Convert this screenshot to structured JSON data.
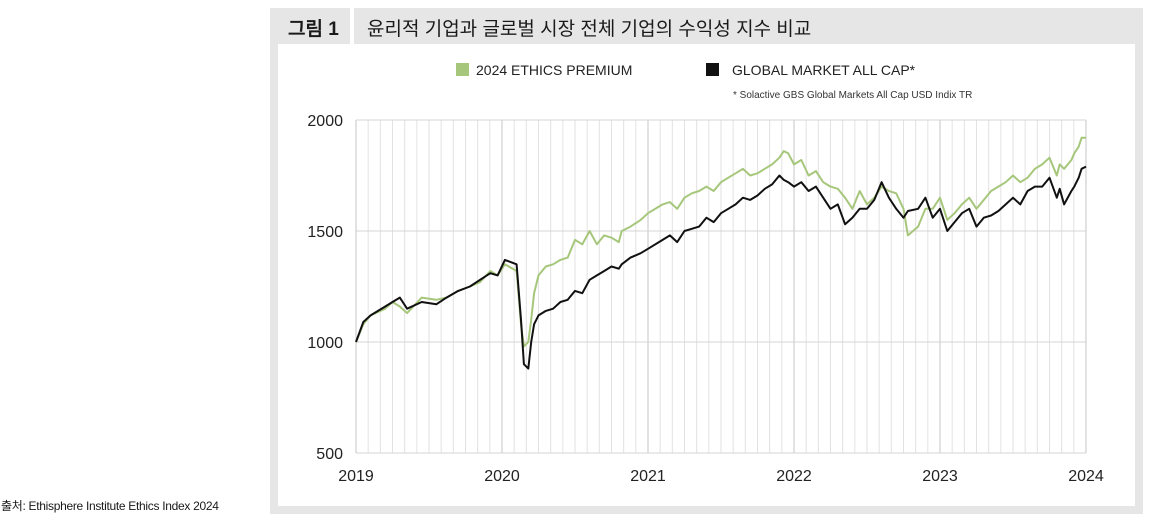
{
  "figure": {
    "label": "그림 1",
    "title": "윤리적 기업과 글로벌 시장 전체 기업의 수익성 지수 비교"
  },
  "source": "출처: Ethisphere Institute Ethics Index 2024",
  "colors": {
    "ethics": "#a6c77b",
    "market": "#111111",
    "grid": "#e2e2e2",
    "panel": "#e6e6e6"
  },
  "chart_data": {
    "type": "line",
    "title": "",
    "xlabel": "",
    "ylabel": "",
    "xlim": [
      2019,
      2024
    ],
    "ylim": [
      500,
      2000
    ],
    "x_ticks": [
      "2019",
      "2020",
      "2021",
      "2022",
      "2023",
      "2024"
    ],
    "y_ticks": [
      "500",
      "1000",
      "1500",
      "2000"
    ],
    "grid": true,
    "legend_position": "top",
    "footnote": "* Solactive GBS Global Markets All Cap USD Indix TR",
    "series": [
      {
        "name": "2024 ETHICS PREMIUM",
        "x": [
          2019.0,
          2019.05,
          2019.1,
          2019.2,
          2019.25,
          2019.3,
          2019.35,
          2019.45,
          2019.55,
          2019.62,
          2019.7,
          2019.78,
          2019.85,
          2019.92,
          2019.97,
          2020.02,
          2020.1,
          2020.13,
          2020.15,
          2020.18,
          2020.2,
          2020.22,
          2020.25,
          2020.3,
          2020.35,
          2020.4,
          2020.45,
          2020.5,
          2020.55,
          2020.6,
          2020.65,
          2020.7,
          2020.75,
          2020.8,
          2020.82,
          2020.88,
          2020.95,
          2021.0,
          2021.1,
          2021.15,
          2021.2,
          2021.25,
          2021.3,
          2021.35,
          2021.4,
          2021.45,
          2021.5,
          2021.55,
          2021.6,
          2021.65,
          2021.7,
          2021.75,
          2021.8,
          2021.85,
          2021.9,
          2021.93,
          2021.96,
          2022.0,
          2022.05,
          2022.1,
          2022.15,
          2022.2,
          2022.25,
          2022.3,
          2022.35,
          2022.4,
          2022.45,
          2022.5,
          2022.55,
          2022.6,
          2022.65,
          2022.7,
          2022.75,
          2022.78,
          2022.85,
          2022.9,
          2022.95,
          2023.0,
          2023.05,
          2023.1,
          2023.15,
          2023.2,
          2023.25,
          2023.3,
          2023.35,
          2023.4,
          2023.45,
          2023.5,
          2023.55,
          2023.6,
          2023.65,
          2023.7,
          2023.75,
          2023.8,
          2023.82,
          2023.85,
          2023.9,
          2023.92,
          2023.95,
          2023.97,
          2024.0
        ],
        "values": [
          1000,
          1080,
          1120,
          1150,
          1180,
          1160,
          1130,
          1200,
          1190,
          1200,
          1230,
          1250,
          1270,
          1320,
          1300,
          1350,
          1320,
          1080,
          980,
          1000,
          1100,
          1220,
          1300,
          1340,
          1350,
          1370,
          1380,
          1460,
          1440,
          1500,
          1440,
          1480,
          1470,
          1450,
          1500,
          1520,
          1550,
          1580,
          1620,
          1630,
          1600,
          1650,
          1670,
          1680,
          1700,
          1680,
          1720,
          1740,
          1760,
          1780,
          1750,
          1760,
          1780,
          1800,
          1830,
          1860,
          1850,
          1800,
          1820,
          1750,
          1770,
          1720,
          1700,
          1690,
          1650,
          1600,
          1680,
          1620,
          1650,
          1700,
          1680,
          1670,
          1600,
          1480,
          1520,
          1600,
          1600,
          1650,
          1550,
          1580,
          1620,
          1650,
          1600,
          1640,
          1680,
          1700,
          1720,
          1750,
          1720,
          1740,
          1780,
          1800,
          1830,
          1750,
          1800,
          1780,
          1820,
          1850,
          1880,
          1920,
          1920
        ]
      },
      {
        "name": "GLOBAL MARKET ALL CAP*",
        "x": [
          2019.0,
          2019.05,
          2019.1,
          2019.2,
          2019.25,
          2019.3,
          2019.35,
          2019.45,
          2019.55,
          2019.62,
          2019.7,
          2019.78,
          2019.85,
          2019.92,
          2019.97,
          2020.02,
          2020.1,
          2020.13,
          2020.15,
          2020.18,
          2020.2,
          2020.22,
          2020.25,
          2020.3,
          2020.35,
          2020.4,
          2020.45,
          2020.5,
          2020.55,
          2020.6,
          2020.65,
          2020.7,
          2020.75,
          2020.8,
          2020.82,
          2020.88,
          2020.95,
          2021.0,
          2021.1,
          2021.15,
          2021.2,
          2021.25,
          2021.3,
          2021.35,
          2021.4,
          2021.45,
          2021.5,
          2021.55,
          2021.6,
          2021.65,
          2021.7,
          2021.75,
          2021.8,
          2021.85,
          2021.9,
          2021.93,
          2021.96,
          2022.0,
          2022.05,
          2022.1,
          2022.15,
          2022.2,
          2022.25,
          2022.3,
          2022.35,
          2022.4,
          2022.45,
          2022.5,
          2022.55,
          2022.6,
          2022.65,
          2022.7,
          2022.75,
          2022.78,
          2022.85,
          2022.9,
          2022.95,
          2023.0,
          2023.05,
          2023.1,
          2023.15,
          2023.2,
          2023.25,
          2023.3,
          2023.35,
          2023.4,
          2023.45,
          2023.5,
          2023.55,
          2023.6,
          2023.65,
          2023.7,
          2023.75,
          2023.8,
          2023.82,
          2023.85,
          2023.9,
          2023.92,
          2023.95,
          2023.97,
          2024.0
        ],
        "values": [
          1000,
          1090,
          1120,
          1160,
          1180,
          1200,
          1150,
          1180,
          1170,
          1200,
          1230,
          1250,
          1280,
          1310,
          1300,
          1370,
          1350,
          1100,
          900,
          880,
          1000,
          1080,
          1120,
          1140,
          1150,
          1180,
          1190,
          1230,
          1220,
          1280,
          1300,
          1320,
          1340,
          1330,
          1350,
          1380,
          1400,
          1420,
          1460,
          1480,
          1450,
          1500,
          1510,
          1520,
          1560,
          1540,
          1580,
          1600,
          1620,
          1650,
          1640,
          1660,
          1690,
          1710,
          1750,
          1730,
          1720,
          1700,
          1720,
          1680,
          1700,
          1650,
          1600,
          1620,
          1530,
          1560,
          1600,
          1600,
          1640,
          1720,
          1650,
          1600,
          1560,
          1590,
          1600,
          1650,
          1560,
          1600,
          1500,
          1540,
          1580,
          1600,
          1520,
          1560,
          1570,
          1590,
          1620,
          1650,
          1620,
          1680,
          1700,
          1700,
          1740,
          1650,
          1690,
          1620,
          1680,
          1700,
          1740,
          1780,
          1790
        ]
      }
    ]
  }
}
